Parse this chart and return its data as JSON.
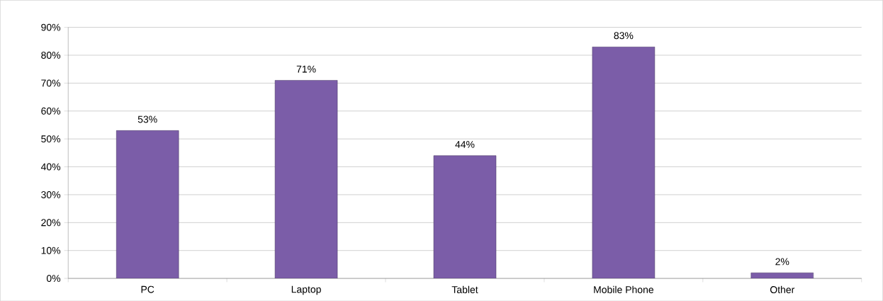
{
  "chart_data": {
    "type": "bar",
    "categories": [
      "PC",
      "Laptop",
      "Tablet",
      "Mobile Phone",
      "Other"
    ],
    "values": [
      53,
      71,
      44,
      83,
      2
    ],
    "value_labels": [
      "53%",
      "71%",
      "44%",
      "83%",
      "2%"
    ],
    "color": "#7b5da8",
    "ylim": [
      0,
      90
    ],
    "yticks": [
      {
        "value": 0,
        "label": "0%"
      },
      {
        "value": 10,
        "label": "10%"
      },
      {
        "value": 20,
        "label": "20%"
      },
      {
        "value": 30,
        "label": "30%"
      },
      {
        "value": 40,
        "label": "40%"
      },
      {
        "value": 50,
        "label": "50%"
      },
      {
        "value": 60,
        "label": "60%"
      },
      {
        "value": 70,
        "label": "70%"
      },
      {
        "value": 80,
        "label": "80%"
      },
      {
        "value": 90,
        "label": "90%"
      }
    ],
    "grid": "y"
  }
}
